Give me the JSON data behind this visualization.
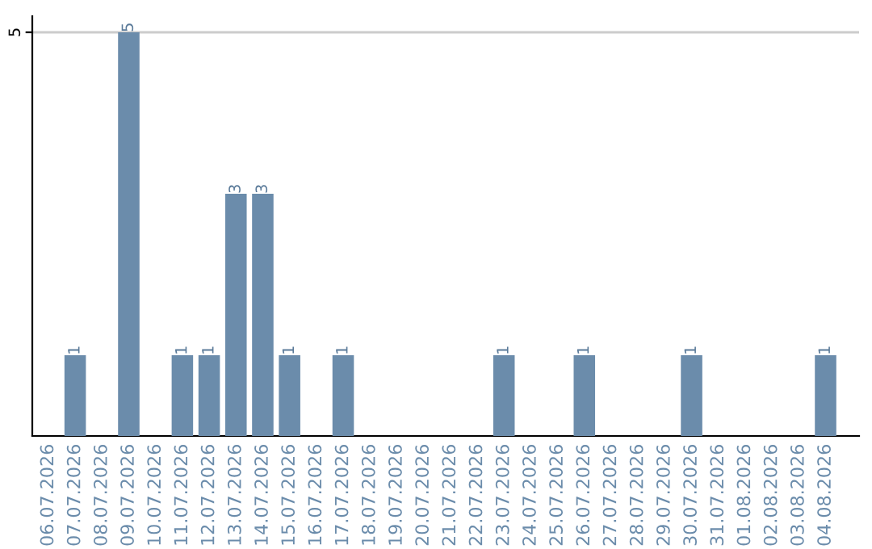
{
  "chart_data": {
    "type": "bar",
    "categories": [
      "06.07.2026",
      "07.07.2026",
      "08.07.2026",
      "09.07.2026",
      "10.07.2026",
      "11.07.2026",
      "12.07.2026",
      "13.07.2026",
      "14.07.2026",
      "15.07.2026",
      "16.07.2026",
      "17.07.2026",
      "18.07.2026",
      "19.07.2026",
      "20.07.2026",
      "21.07.2026",
      "22.07.2026",
      "23.07.2026",
      "24.07.2026",
      "25.07.2026",
      "26.07.2026",
      "27.07.2026",
      "28.07.2026",
      "29.07.2026",
      "30.07.2026",
      "31.07.2026",
      "01.08.2026",
      "02.08.2026",
      "03.08.2026",
      "04.08.2026"
    ],
    "values": [
      0,
      1,
      0,
      5,
      0,
      1,
      1,
      3,
      3,
      1,
      0,
      1,
      0,
      0,
      0,
      0,
      0,
      1,
      0,
      0,
      1,
      0,
      0,
      0,
      1,
      0,
      0,
      0,
      0,
      1
    ],
    "value_labels": [
      null,
      "1",
      null,
      "5",
      null,
      "1",
      "1",
      "3",
      "3",
      "1",
      null,
      "1",
      null,
      null,
      null,
      null,
      null,
      "1",
      null,
      null,
      "1",
      null,
      null,
      null,
      "1",
      null,
      null,
      null,
      null,
      "1"
    ],
    "color": "#6b8cab",
    "ylim": [
      0,
      5.2
    ],
    "yticks": [
      5
    ],
    "grid": "y",
    "legend": false
  }
}
